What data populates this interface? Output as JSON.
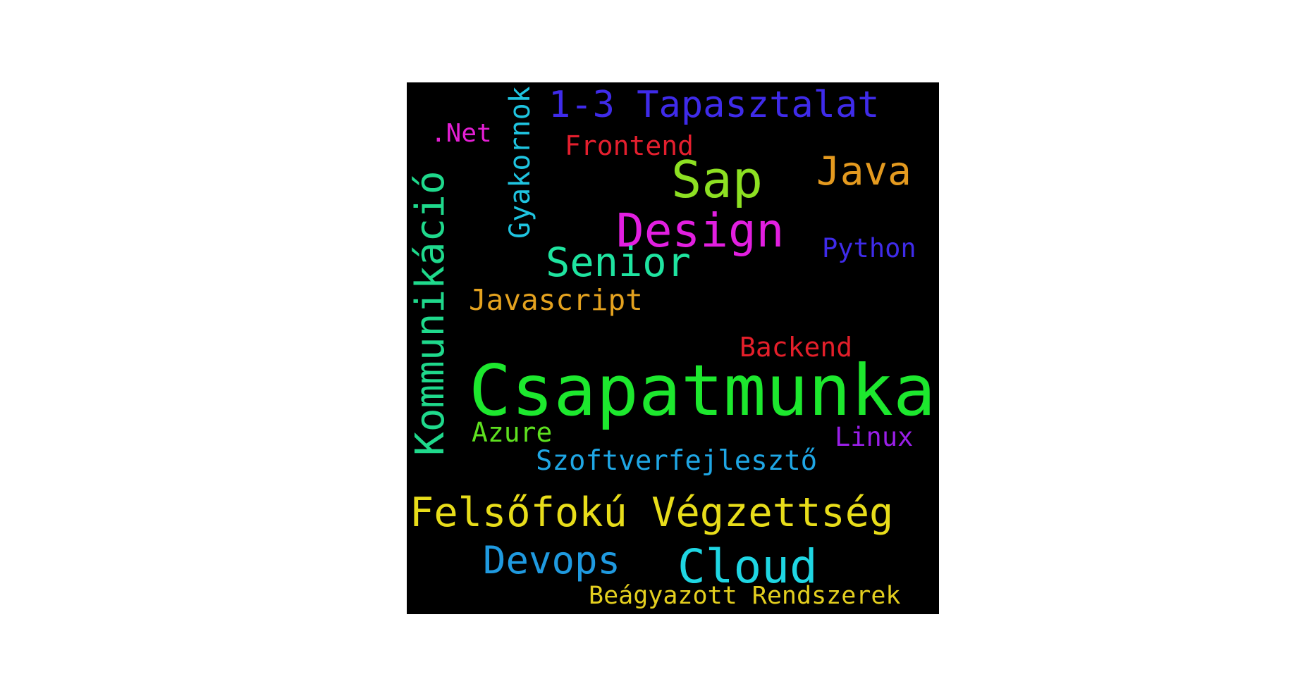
{
  "words": [
    {
      "key": "csapatmunka",
      "text": "Csapatmunka",
      "color": "#1de82e"
    },
    {
      "key": "felsofoku",
      "text": "Felsőfokú Végzettség",
      "color": "#e8dd1a"
    },
    {
      "key": "kommunikacio",
      "text": "Kommunikáció",
      "color": "#1fd98c"
    },
    {
      "key": "design",
      "text": "Design",
      "color": "#e21fe0"
    },
    {
      "key": "cloud",
      "text": "Cloud",
      "color": "#1fd6e3"
    },
    {
      "key": "sap",
      "text": "Sap",
      "color": "#8de022"
    },
    {
      "key": "tapasztalat",
      "text": "1-3 Tapasztalat",
      "color": "#3f2bea"
    },
    {
      "key": "senior",
      "text": "Senior",
      "color": "#1fe4a0"
    },
    {
      "key": "devops",
      "text": "Devops",
      "color": "#1f9ae0"
    },
    {
      "key": "java",
      "text": "Java",
      "color": "#e49a1f"
    },
    {
      "key": "javascript",
      "text": "Javascript",
      "color": "#e4a21f"
    },
    {
      "key": "szoftverfejleszto",
      "text": "Szoftverfejlesztő",
      "color": "#1fa6e4"
    },
    {
      "key": "gyakornok",
      "text": "Gyakornok",
      "color": "#1fc4e0"
    },
    {
      "key": "frontend",
      "text": "Frontend",
      "color": "#e41f2e"
    },
    {
      "key": "backend",
      "text": "Backend",
      "color": "#e41f2a"
    },
    {
      "key": "python",
      "text": "Python",
      "color": "#3f2bea"
    },
    {
      "key": "azure",
      "text": "Azure",
      "color": "#5ee01f"
    },
    {
      "key": "linux",
      "text": "Linux",
      "color": "#9a1fe8"
    },
    {
      "key": "beagyazott",
      "text": "Beágyazott Rendszerek",
      "color": "#e4cf1f"
    },
    {
      "key": "net",
      "text": ".Net",
      "color": "#e41fd4"
    }
  ]
}
